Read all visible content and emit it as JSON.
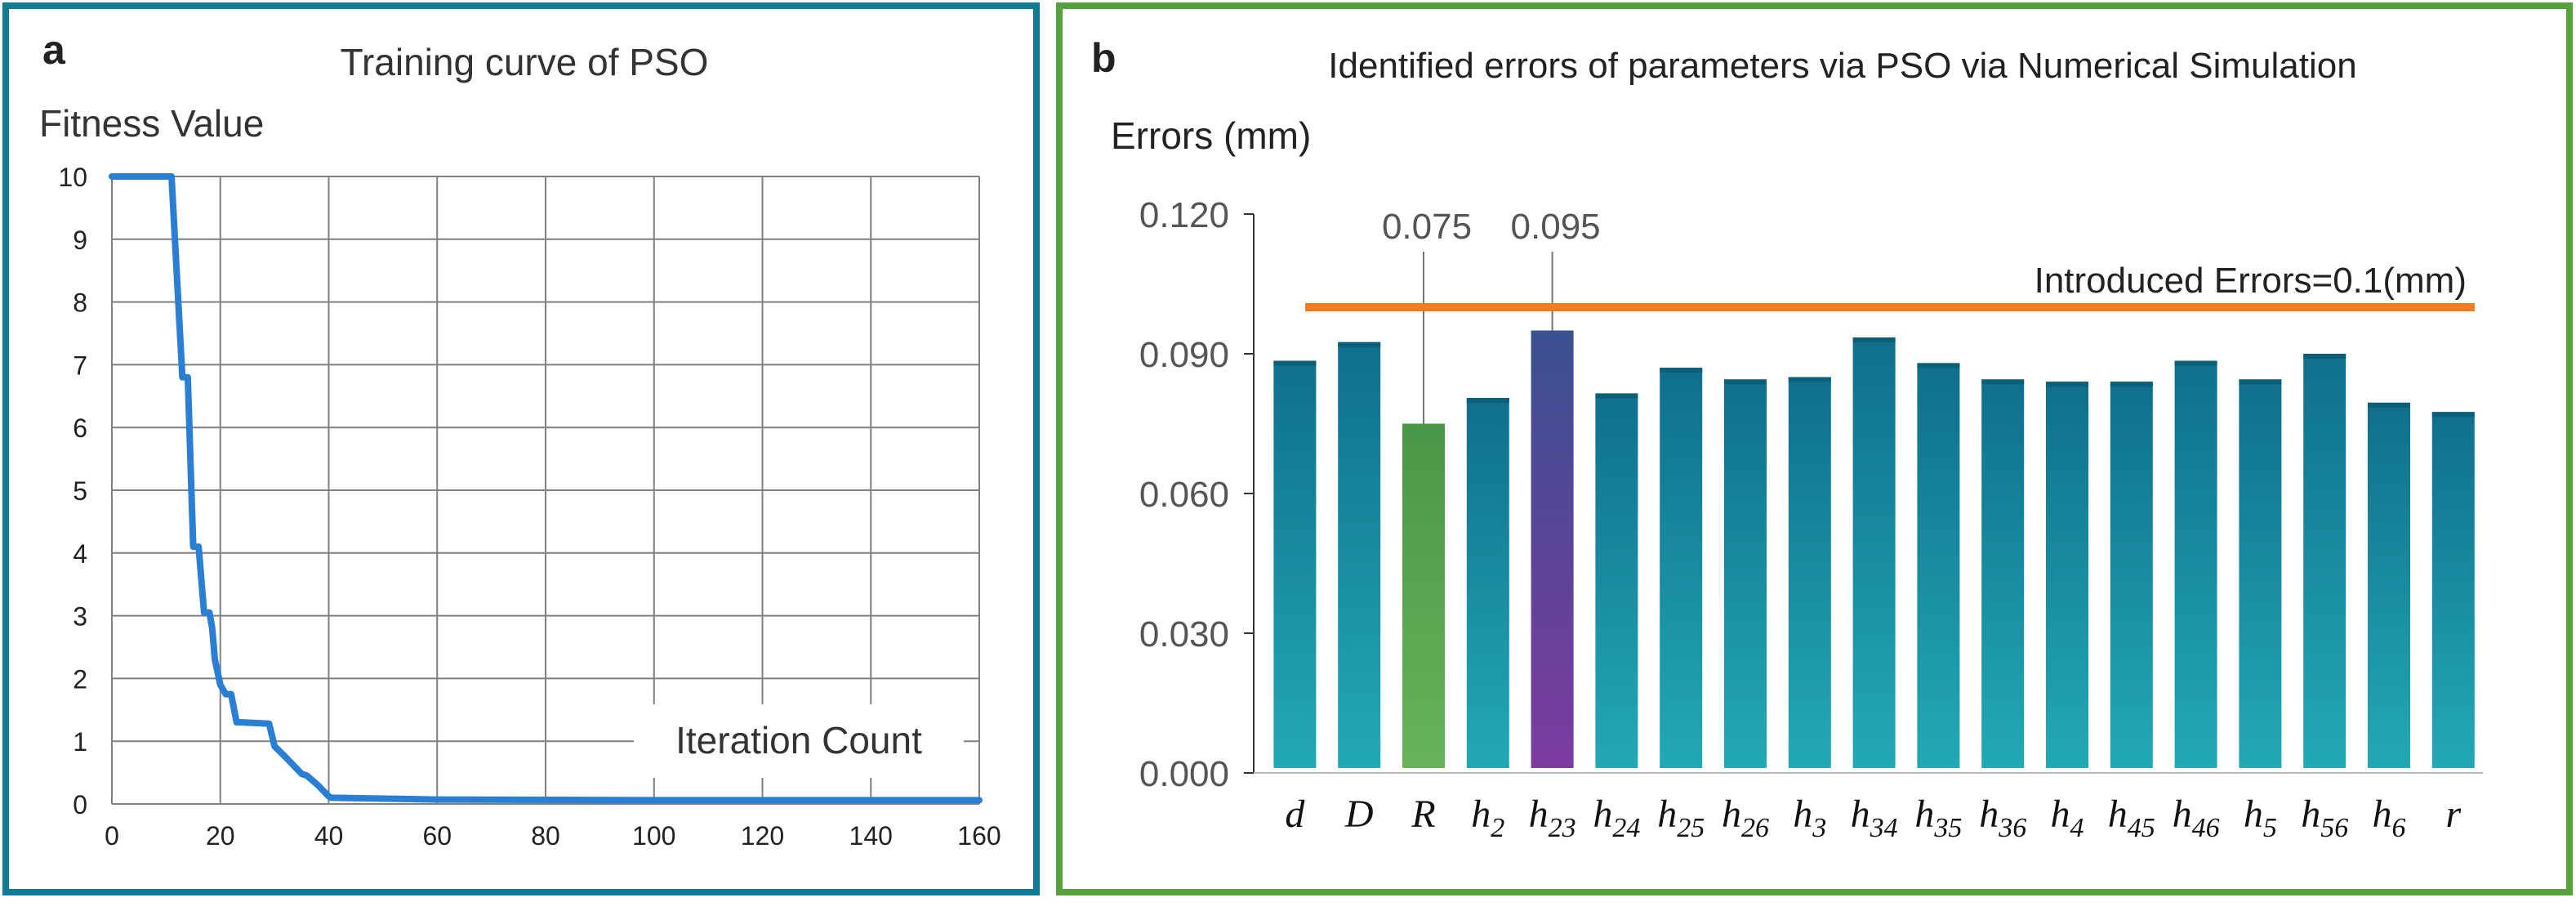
{
  "panel_a": {
    "letter": "a",
    "border_color": "#117a95",
    "line_color": "#2a7fd4",
    "grid_color": "#808080",
    "chart_data": {
      "type": "line",
      "title": "Training curve of PSO",
      "ylabel": "Fitness Value",
      "xlabel": "Iteration Count",
      "xlim": [
        0,
        160
      ],
      "ylim": [
        0,
        10
      ],
      "xticks": [
        0,
        20,
        40,
        60,
        80,
        100,
        120,
        140,
        160
      ],
      "yticks": [
        0,
        1,
        2,
        3,
        4,
        5,
        6,
        7,
        8,
        9,
        10
      ],
      "xtick_labels": [
        "0",
        "20",
        "40",
        "60",
        "80",
        "100",
        "120",
        "140",
        "160"
      ],
      "ytick_labels": [
        "0",
        "1",
        "2",
        "3",
        "4",
        "5",
        "6",
        "7",
        "8",
        "9",
        "10"
      ],
      "grid": true,
      "series": [
        {
          "name": "fitness",
          "x": [
            0,
            11,
            13,
            14,
            15,
            16,
            17,
            18,
            18.5,
            19,
            20,
            21,
            22,
            23,
            24,
            29,
            30,
            32,
            35,
            36,
            38,
            40,
            40.5,
            60,
            100,
            160
          ],
          "y": [
            10,
            10,
            6.8,
            6.8,
            4.1,
            4.1,
            3.05,
            3.05,
            2.8,
            2.3,
            1.9,
            1.75,
            1.75,
            1.3,
            1.3,
            1.28,
            0.92,
            0.75,
            0.48,
            0.45,
            0.3,
            0.12,
            0.1,
            0.07,
            0.06,
            0.06
          ]
        }
      ]
    }
  },
  "panel_b": {
    "letter": "b",
    "border_color": "#56a03e",
    "reference_color": "#f57c1f",
    "chart_data": {
      "type": "bar",
      "title": "Identified errors of parameters via PSO via Numerical Simulation",
      "ylabel": "Errors (mm)",
      "xlabel": "",
      "ylim": [
        0,
        0.12
      ],
      "yticks": [
        0,
        0.03,
        0.06,
        0.09,
        0.12
      ],
      "ytick_labels": [
        "0.000",
        "0.030",
        "0.060",
        "0.090",
        "0.120"
      ],
      "grid": false,
      "categories": [
        {
          "base": "d",
          "sub": ""
        },
        {
          "base": "D",
          "sub": ""
        },
        {
          "base": "R",
          "sub": ""
        },
        {
          "base": "h",
          "sub": "2"
        },
        {
          "base": "h",
          "sub": "23"
        },
        {
          "base": "h",
          "sub": "24"
        },
        {
          "base": "h",
          "sub": "25"
        },
        {
          "base": "h",
          "sub": "26"
        },
        {
          "base": "h",
          "sub": "3"
        },
        {
          "base": "h",
          "sub": "34"
        },
        {
          "base": "h",
          "sub": "35"
        },
        {
          "base": "h",
          "sub": "36"
        },
        {
          "base": "h",
          "sub": "4"
        },
        {
          "base": "h",
          "sub": "45"
        },
        {
          "base": "h",
          "sub": "46"
        },
        {
          "base": "h",
          "sub": "5"
        },
        {
          "base": "h",
          "sub": "56"
        },
        {
          "base": "h",
          "sub": "6"
        },
        {
          "base": "r",
          "sub": ""
        }
      ],
      "values": [
        0.0885,
        0.0925,
        0.075,
        0.0805,
        0.095,
        0.0815,
        0.087,
        0.0845,
        0.085,
        0.0935,
        0.088,
        0.0845,
        0.084,
        0.084,
        0.0885,
        0.0845,
        0.09,
        0.0795,
        0.0775
      ],
      "bar_colors": [
        "teal",
        "teal",
        "green",
        "teal",
        "purple",
        "teal",
        "teal",
        "teal",
        "teal",
        "teal",
        "teal",
        "teal",
        "teal",
        "teal",
        "teal",
        "teal",
        "teal",
        "teal",
        "teal"
      ],
      "reference_line": {
        "value": 0.1,
        "label": "Introduced Errors=0.1(mm)"
      },
      "annotations": [
        {
          "category_index": 2,
          "text": "0.075"
        },
        {
          "category_index": 4,
          "text": "0.095"
        }
      ]
    }
  }
}
